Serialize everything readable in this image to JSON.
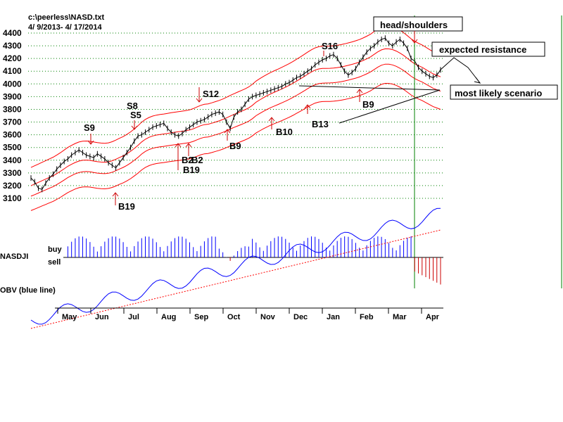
{
  "chart_data": {
    "type": "line",
    "title": "c:\\peerless\\NASD.txt",
    "subtitle": "4/ 9/2013- 4/ 17/2014",
    "y_ticks": [
      4400,
      4300,
      4200,
      4100,
      4000,
      3900,
      3800,
      3700,
      3600,
      3500,
      3400,
      3300,
      3200,
      3100
    ],
    "ylim": [
      3100,
      4400
    ],
    "months": [
      "May",
      "Jun",
      "Jul",
      "Aug",
      "Sep",
      "Oct",
      "Nov",
      "Dec",
      "Jan",
      "Feb",
      "Mar",
      "Apr"
    ],
    "series": [
      {
        "values": [
          3260,
          3230,
          3180,
          3170,
          3220,
          3260,
          3290,
          3330,
          3360,
          3390,
          3410,
          3440,
          3460,
          3480,
          3460,
          3440,
          3430,
          3420,
          3450,
          3430,
          3410,
          3380,
          3360,
          3340,
          3380,
          3420,
          3460,
          3500,
          3550,
          3590,
          3600,
          3620,
          3640,
          3660,
          3670,
          3680,
          3690,
          3650,
          3620,
          3600,
          3590,
          3610,
          3640,
          3660,
          3680,
          3700,
          3710,
          3720,
          3740,
          3760,
          3770,
          3780,
          3760,
          3700,
          3650,
          3740,
          3780,
          3800,
          3840,
          3880,
          3900,
          3910,
          3920,
          3930,
          3940,
          3950,
          3960,
          3970,
          3980,
          4000,
          4010,
          4030,
          4050,
          4060,
          4080,
          4100,
          4120,
          4150,
          4170,
          4190,
          4200,
          4220,
          4230,
          4200,
          4150,
          4100,
          4070,
          4090,
          4120,
          4170,
          4210,
          4250,
          4280,
          4300,
          4330,
          4350,
          4360,
          4320,
          4300,
          4330,
          4350,
          4320,
          4280,
          4200,
          4180,
          4130,
          4100,
          4080,
          4060,
          4050,
          4070,
          4110
        ]
      }
    ],
    "signals": [
      {
        "label": "S9",
        "direction": "sell"
      },
      {
        "label": "S8",
        "direction": "sell"
      },
      {
        "label": "S5",
        "direction": "sell"
      },
      {
        "label": "S12",
        "direction": "sell"
      },
      {
        "label": "S16",
        "direction": "sell"
      },
      {
        "label": "B19",
        "direction": "buy"
      },
      {
        "label": "B2",
        "direction": "buy"
      },
      {
        "label": "B2",
        "direction": "buy"
      },
      {
        "label": "B19",
        "direction": "buy"
      },
      {
        "label": "B9",
        "direction": "buy"
      },
      {
        "label": "B10",
        "direction": "buy"
      },
      {
        "label": "B13",
        "direction": "buy"
      },
      {
        "label": "B9",
        "direction": "buy"
      }
    ],
    "indicator_label": "NASDJI",
    "buy_label": "buy",
    "sell_label": "sell",
    "obv_label": "OBV (blue line)",
    "annotations": {
      "head_shoulders": "head/shoulders",
      "expected_resistance": "expected resistance",
      "most_likely_scenario": "most likely scenario"
    },
    "colors": {
      "price": "#000000",
      "bands": "#ff0000",
      "grid": "#008000",
      "buy_bars": "#0000ff",
      "sell_bars": "#cc0000",
      "obv": "#0000ff",
      "obv_ma": "#ff0000",
      "vertical_line": "#008000"
    }
  }
}
